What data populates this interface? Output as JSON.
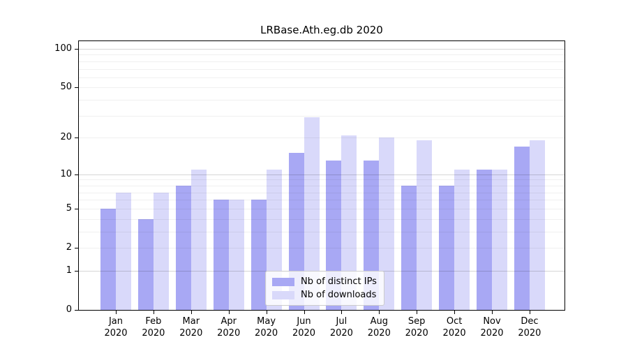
{
  "chart_data": {
    "type": "bar",
    "title": "LRBase.Ath.eg.db 2020",
    "categories": [
      "Jan",
      "Feb",
      "Mar",
      "Apr",
      "May",
      "Jun",
      "Jul",
      "Aug",
      "Sep",
      "Oct",
      "Nov",
      "Dec"
    ],
    "category_year": "2020",
    "series": [
      {
        "name": "Nb of distinct IPs",
        "color": "#a8a8f4",
        "values": [
          5,
          4,
          8,
          6,
          6,
          15,
          13,
          13,
          8,
          8,
          11,
          17
        ]
      },
      {
        "name": "Nb of downloads",
        "color": "#d9d9fa",
        "values": [
          7,
          7,
          11,
          6,
          11,
          29,
          21,
          20,
          19,
          11,
          11,
          19
        ]
      }
    ],
    "yscale": "log1p",
    "ylim": [
      0,
      116
    ],
    "ytick_values": [
      100,
      50,
      20,
      10,
      5,
      2,
      1,
      0
    ],
    "ytick_labels": [
      "100",
      "50",
      "20",
      "10",
      "5",
      "2",
      "1",
      "0"
    ],
    "grid": {
      "shown": true,
      "major_values": [
        1,
        10,
        100
      ],
      "minor_values": [
        2,
        3,
        4,
        5,
        6,
        7,
        8,
        9,
        20,
        30,
        40,
        50,
        60,
        70,
        80,
        90
      ],
      "major_color": "rgba(0,0,0,0.16)",
      "minor_color": "rgba(0,0,0,0.06)"
    },
    "legend_position": "lower center",
    "bar_group_layout": "paired",
    "background_color": "#ffffff",
    "axis_color": "#000000"
  }
}
